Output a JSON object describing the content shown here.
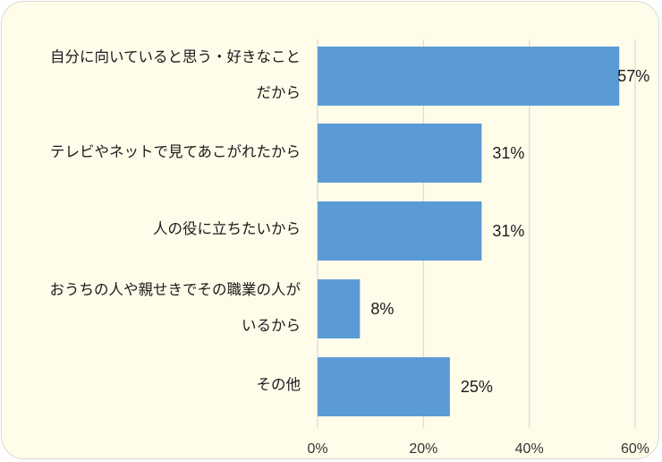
{
  "chart_data": {
    "type": "bar",
    "orientation": "horizontal",
    "categories": [
      "自分に向いていると思う・好きなこと\nだから",
      "テレビやネットで見てあこがれたから",
      "人の役に立ちたいから",
      "おうちの人や親せきでその職業の人が\nいるから",
      "その他"
    ],
    "values": [
      57,
      31,
      31,
      8,
      25
    ],
    "value_labels": [
      "57%",
      "31%",
      "31%",
      "8%",
      "25%"
    ],
    "x_ticks": [
      "0%",
      "20%",
      "40%",
      "60%"
    ],
    "xlim": [
      0,
      60
    ],
    "grid": true,
    "bar_color": "#5b9bd5"
  }
}
